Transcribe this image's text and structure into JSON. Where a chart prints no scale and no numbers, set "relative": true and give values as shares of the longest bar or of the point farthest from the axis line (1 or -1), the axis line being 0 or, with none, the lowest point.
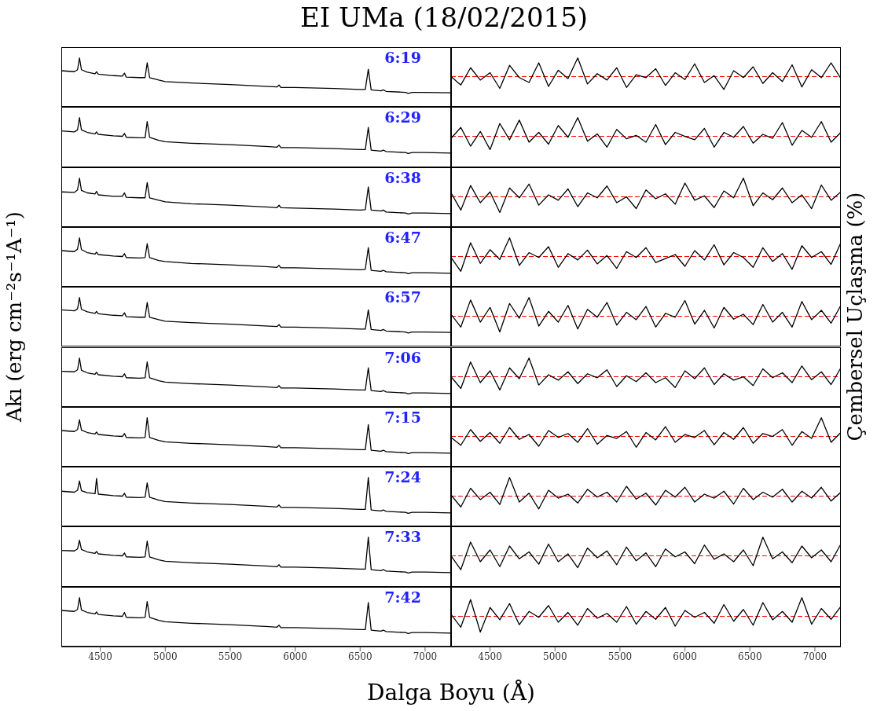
{
  "chart_data": [
    {
      "type": "line",
      "title": "EI UMa (18/02/2015)",
      "annotations": [
        "6:19"
      ],
      "relative": true,
      "color": "#000000",
      "tick_labels": false,
      "xlim": [
        4200,
        7200
      ],
      "xticks": [
        4500,
        5000,
        5500,
        6000,
        6500,
        7000
      ],
      "x": [
        4200,
        4300,
        4325,
        4340,
        4355,
        4400,
        4460,
        4471,
        4485,
        4600,
        4670,
        4686,
        4700,
        4800,
        4845,
        4861,
        4880,
        4950,
        5000,
        5200,
        5500,
        5800,
        5860,
        5876,
        5890,
        6000,
        6300,
        6500,
        6540,
        6563,
        6585,
        6660,
        6678,
        6700,
        6850,
        6870,
        6900,
        7000,
        7200
      ],
      "values": [
        0.74,
        0.72,
        0.76,
        1.0,
        0.76,
        0.71,
        0.68,
        0.72,
        0.67,
        0.64,
        0.63,
        0.69,
        0.61,
        0.6,
        0.6,
        0.9,
        0.6,
        0.55,
        0.52,
        0.49,
        0.46,
        0.42,
        0.41,
        0.45,
        0.4,
        0.4,
        0.38,
        0.36,
        0.36,
        0.77,
        0.35,
        0.33,
        0.35,
        0.32,
        0.3,
        0.28,
        0.3,
        0.3,
        0.29
      ]
    },
    {
      "type": "line",
      "relative": true,
      "color": "#000000",
      "tick_labels": false,
      "xlim": [
        4200,
        7200
      ],
      "xticks": [
        4500,
        5000,
        5500,
        6000,
        6500,
        7000
      ],
      "ref_lines": [
        {
          "axis": "y",
          "value": 0.62,
          "color": "#ff0000",
          "line_style": "dashed"
        }
      ],
      "x": [
        4200,
        4275,
        4350,
        4425,
        4500,
        4575,
        4650,
        4725,
        4800,
        4875,
        4950,
        5025,
        5100,
        5175,
        5250,
        5325,
        5400,
        5475,
        5550,
        5625,
        5700,
        5775,
        5850,
        5925,
        6000,
        6075,
        6150,
        6225,
        6300,
        6375,
        6450,
        6525,
        6600,
        6675,
        6750,
        6825,
        6900,
        6975,
        7050,
        7125,
        7200
      ],
      "values": [
        0.62,
        0.45,
        0.8,
        0.55,
        0.7,
        0.38,
        0.85,
        0.6,
        0.5,
        0.9,
        0.42,
        0.75,
        0.58,
        1.0,
        0.47,
        0.68,
        0.55,
        0.8,
        0.4,
        0.66,
        0.6,
        0.78,
        0.44,
        0.7,
        0.56,
        0.88,
        0.5,
        0.64,
        0.36,
        0.74,
        0.6,
        0.82,
        0.48,
        0.7,
        0.52,
        0.86,
        0.41,
        0.76,
        0.6,
        0.9,
        0.58
      ]
    },
    {
      "type": "line",
      "annotations": [
        "6:29"
      ],
      "relative": true,
      "color": "#000000",
      "tick_labels": false,
      "xlim": [
        4200,
        7200
      ],
      "xticks": [
        4500,
        5000,
        5500,
        6000,
        6500,
        7000
      ],
      "x": [
        4200,
        4300,
        4325,
        4340,
        4355,
        4400,
        4460,
        4471,
        4485,
        4600,
        4670,
        4686,
        4700,
        4800,
        4845,
        4861,
        4880,
        4950,
        5000,
        5200,
        5500,
        5800,
        5860,
        5876,
        5890,
        6000,
        6300,
        6500,
        6540,
        6563,
        6585,
        6660,
        6678,
        6700,
        6850,
        6870,
        6900,
        7000,
        7200
      ],
      "values": [
        0.73,
        0.71,
        0.75,
        1.0,
        0.75,
        0.7,
        0.67,
        0.71,
        0.66,
        0.63,
        0.62,
        0.68,
        0.6,
        0.59,
        0.59,
        0.92,
        0.6,
        0.54,
        0.51,
        0.48,
        0.45,
        0.41,
        0.4,
        0.44,
        0.39,
        0.39,
        0.37,
        0.35,
        0.35,
        0.8,
        0.34,
        0.32,
        0.34,
        0.31,
        0.29,
        0.27,
        0.29,
        0.29,
        0.28
      ]
    },
    {
      "type": "line",
      "relative": true,
      "color": "#000000",
      "tick_labels": false,
      "xlim": [
        4200,
        7200
      ],
      "xticks": [
        4500,
        5000,
        5500,
        6000,
        6500,
        7000
      ],
      "ref_lines": [
        {
          "axis": "y",
          "value": 0.62,
          "color": "#ff0000",
          "line_style": "dashed"
        }
      ],
      "x": [
        4200,
        4275,
        4350,
        4425,
        4500,
        4575,
        4650,
        4725,
        4800,
        4875,
        4950,
        5025,
        5100,
        5175,
        5250,
        5325,
        5400,
        5475,
        5550,
        5625,
        5700,
        5775,
        5850,
        5925,
        6000,
        6075,
        6150,
        6225,
        6300,
        6375,
        6450,
        6525,
        6600,
        6675,
        6750,
        6825,
        6900,
        6975,
        7050,
        7125,
        7200
      ],
      "values": [
        0.58,
        0.8,
        0.42,
        0.72,
        0.35,
        0.88,
        0.55,
        0.95,
        0.5,
        0.7,
        0.46,
        0.84,
        0.6,
        1.0,
        0.52,
        0.67,
        0.4,
        0.76,
        0.57,
        0.64,
        0.5,
        0.86,
        0.45,
        0.7,
        0.62,
        0.55,
        0.78,
        0.4,
        0.7,
        0.6,
        0.82,
        0.48,
        0.66,
        0.58,
        0.9,
        0.44,
        0.74,
        0.6,
        0.92,
        0.5,
        0.7
      ]
    },
    {
      "type": "line",
      "annotations": [
        "6:38"
      ],
      "relative": true,
      "color": "#000000",
      "tick_labels": false,
      "xlim": [
        4200,
        7200
      ],
      "xticks": [
        4500,
        5000,
        5500,
        6000,
        6500,
        7000
      ],
      "x": [
        4200,
        4300,
        4325,
        4340,
        4355,
        4400,
        4460,
        4471,
        4485,
        4600,
        4670,
        4686,
        4700,
        4800,
        4845,
        4861,
        4880,
        4950,
        5000,
        5200,
        5500,
        5800,
        5860,
        5876,
        5890,
        6000,
        6300,
        6500,
        6540,
        6563,
        6585,
        6660,
        6678,
        6700,
        6850,
        6870,
        6900,
        7000,
        7200
      ],
      "values": [
        0.72,
        0.71,
        0.76,
        1.0,
        0.75,
        0.7,
        0.68,
        0.73,
        0.66,
        0.63,
        0.63,
        0.7,
        0.61,
        0.6,
        0.6,
        0.91,
        0.6,
        0.55,
        0.52,
        0.48,
        0.45,
        0.41,
        0.4,
        0.45,
        0.4,
        0.39,
        0.37,
        0.35,
        0.36,
        0.82,
        0.35,
        0.33,
        0.35,
        0.31,
        0.29,
        0.27,
        0.29,
        0.29,
        0.28
      ]
    },
    {
      "type": "line",
      "relative": true,
      "color": "#000000",
      "tick_labels": false,
      "xlim": [
        4200,
        7200
      ],
      "xticks": [
        4500,
        5000,
        5500,
        6000,
        6500,
        7000
      ],
      "ref_lines": [
        {
          "axis": "y",
          "value": 0.62,
          "color": "#ff0000",
          "line_style": "dashed"
        }
      ],
      "x": [
        4200,
        4275,
        4350,
        4425,
        4500,
        4575,
        4650,
        4725,
        4800,
        4875,
        4950,
        5025,
        5100,
        5175,
        5250,
        5325,
        5400,
        5475,
        5550,
        5625,
        5700,
        5775,
        5850,
        5925,
        6000,
        6075,
        6150,
        6225,
        6300,
        6375,
        6450,
        6525,
        6600,
        6675,
        6750,
        6825,
        6900,
        6975,
        7050,
        7125,
        7200
      ],
      "values": [
        0.7,
        0.35,
        0.85,
        0.5,
        0.72,
        0.3,
        0.8,
        0.6,
        0.88,
        0.45,
        0.66,
        0.55,
        0.78,
        0.42,
        0.7,
        0.6,
        0.84,
        0.5,
        0.62,
        0.38,
        0.76,
        0.58,
        0.68,
        0.47,
        0.9,
        0.55,
        0.64,
        0.4,
        0.74,
        0.6,
        1.0,
        0.44,
        0.7,
        0.56,
        0.8,
        0.5,
        0.66,
        0.38,
        0.86,
        0.55,
        0.72
      ]
    },
    {
      "type": "line",
      "annotations": [
        "6:47"
      ],
      "relative": true,
      "color": "#000000",
      "tick_labels": false,
      "xlim": [
        4200,
        7200
      ],
      "xticks": [
        4500,
        5000,
        5500,
        6000,
        6500,
        7000
      ],
      "x": [
        4200,
        4300,
        4325,
        4340,
        4355,
        4400,
        4460,
        4471,
        4485,
        4600,
        4670,
        4686,
        4700,
        4800,
        4845,
        4861,
        4880,
        4950,
        5000,
        5200,
        5500,
        5800,
        5860,
        5876,
        5890,
        6000,
        6300,
        6500,
        6540,
        6563,
        6585,
        6660,
        6678,
        6700,
        6850,
        6870,
        6900,
        7000,
        7200
      ],
      "values": [
        0.74,
        0.72,
        0.77,
        1.0,
        0.76,
        0.7,
        0.67,
        0.71,
        0.66,
        0.63,
        0.62,
        0.68,
        0.6,
        0.59,
        0.6,
        0.88,
        0.6,
        0.54,
        0.52,
        0.48,
        0.45,
        0.41,
        0.4,
        0.44,
        0.39,
        0.39,
        0.37,
        0.35,
        0.36,
        0.8,
        0.34,
        0.32,
        0.34,
        0.31,
        0.29,
        0.27,
        0.29,
        0.29,
        0.28
      ]
    },
    {
      "type": "line",
      "relative": true,
      "color": "#000000",
      "tick_labels": false,
      "xlim": [
        4200,
        7200
      ],
      "xticks": [
        4500,
        5000,
        5500,
        6000,
        6500,
        7000
      ],
      "ref_lines": [
        {
          "axis": "y",
          "value": 0.62,
          "color": "#ff0000",
          "line_style": "dashed"
        }
      ],
      "x": [
        4200,
        4275,
        4350,
        4425,
        4500,
        4575,
        4650,
        4725,
        4800,
        4875,
        4950,
        5025,
        5100,
        5175,
        5250,
        5325,
        5400,
        5475,
        5550,
        5625,
        5700,
        5775,
        5850,
        5925,
        6000,
        6075,
        6150,
        6225,
        6300,
        6375,
        6450,
        6525,
        6600,
        6675,
        6750,
        6825,
        6900,
        6975,
        7050,
        7125,
        7200
      ],
      "values": [
        0.6,
        0.32,
        0.9,
        0.48,
        0.76,
        0.56,
        1.0,
        0.44,
        0.7,
        0.6,
        0.82,
        0.4,
        0.68,
        0.55,
        0.75,
        0.47,
        0.64,
        0.38,
        0.72,
        0.6,
        0.8,
        0.5,
        0.58,
        0.66,
        0.42,
        0.74,
        0.55,
        0.86,
        0.45,
        0.7,
        0.6,
        0.4,
        0.8,
        0.52,
        0.68,
        0.36,
        0.84,
        0.6,
        0.72,
        0.46,
        0.9
      ]
    },
    {
      "type": "line",
      "ylabel": "Akı (erg cm⁻²s⁻¹A⁻¹)",
      "annotations": [
        "6:57"
      ],
      "relative": true,
      "color": "#000000",
      "tick_labels": false,
      "xlim": [
        4200,
        7200
      ],
      "xticks": [
        4500,
        5000,
        5500,
        6000,
        6500,
        7000
      ],
      "x": [
        4200,
        4300,
        4325,
        4340,
        4355,
        4400,
        4460,
        4471,
        4485,
        4600,
        4670,
        4686,
        4700,
        4800,
        4845,
        4861,
        4880,
        4950,
        5000,
        5200,
        5500,
        5800,
        5860,
        5876,
        5890,
        6000,
        6300,
        6500,
        6540,
        6563,
        6585,
        6660,
        6678,
        6700,
        6850,
        6870,
        6900,
        7000,
        7200
      ],
      "values": [
        0.75,
        0.73,
        0.77,
        1.0,
        0.76,
        0.71,
        0.68,
        0.72,
        0.67,
        0.64,
        0.63,
        0.69,
        0.61,
        0.6,
        0.6,
        0.9,
        0.6,
        0.55,
        0.52,
        0.49,
        0.46,
        0.42,
        0.41,
        0.45,
        0.4,
        0.4,
        0.38,
        0.36,
        0.36,
        0.75,
        0.35,
        0.33,
        0.35,
        0.32,
        0.3,
        0.28,
        0.3,
        0.3,
        0.29
      ]
    },
    {
      "type": "line",
      "relative": true,
      "color": "#000000",
      "tick_labels": false,
      "xlim": [
        4200,
        7200
      ],
      "xticks": [
        4500,
        5000,
        5500,
        6000,
        6500,
        7000
      ],
      "ref_lines": [
        {
          "axis": "y",
          "value": 0.62,
          "color": "#ff0000",
          "line_style": "dashed"
        }
      ],
      "x": [
        4200,
        4275,
        4350,
        4425,
        4500,
        4575,
        4650,
        4725,
        4800,
        4875,
        4950,
        5025,
        5100,
        5175,
        5250,
        5325,
        5400,
        5475,
        5550,
        5625,
        5700,
        5775,
        5850,
        5925,
        6000,
        6075,
        6150,
        6225,
        6300,
        6375,
        6450,
        6525,
        6600,
        6675,
        6750,
        6825,
        6900,
        6975,
        7050,
        7125,
        7200
      ],
      "values": [
        0.66,
        0.4,
        0.95,
        0.5,
        0.8,
        0.3,
        0.88,
        0.58,
        1.0,
        0.42,
        0.72,
        0.5,
        0.84,
        0.36,
        0.76,
        0.6,
        0.9,
        0.44,
        0.7,
        0.55,
        0.82,
        0.4,
        0.68,
        0.6,
        0.94,
        0.46,
        0.74,
        0.38,
        0.8,
        0.56,
        0.66,
        0.45,
        0.86,
        0.5,
        0.7,
        0.4,
        0.92,
        0.55,
        0.74,
        0.48,
        0.84
      ],
      "ylabel": "Çembersel Uçlaşma (%)"
    },
    {
      "type": "line",
      "annotations": [
        "7:06"
      ],
      "relative": true,
      "color": "#000000",
      "tick_labels": false,
      "xlim": [
        4200,
        7200
      ],
      "xticks": [
        4500,
        5000,
        5500,
        6000,
        6500,
        7000
      ],
      "x": [
        4200,
        4300,
        4325,
        4340,
        4355,
        4400,
        4460,
        4471,
        4485,
        4600,
        4670,
        4686,
        4700,
        4800,
        4845,
        4861,
        4880,
        4950,
        5000,
        5200,
        5500,
        5800,
        5860,
        5876,
        5890,
        6000,
        6300,
        6500,
        6540,
        6563,
        6585,
        6660,
        6678,
        6700,
        6850,
        6870,
        6900,
        7000,
        7200
      ],
      "values": [
        0.73,
        0.72,
        0.76,
        1.0,
        0.75,
        0.7,
        0.67,
        0.71,
        0.66,
        0.63,
        0.62,
        0.68,
        0.6,
        0.59,
        0.6,
        0.92,
        0.6,
        0.54,
        0.51,
        0.48,
        0.45,
        0.41,
        0.4,
        0.44,
        0.39,
        0.39,
        0.37,
        0.35,
        0.35,
        0.8,
        0.34,
        0.32,
        0.34,
        0.31,
        0.29,
        0.27,
        0.29,
        0.29,
        0.28
      ]
    },
    {
      "type": "line",
      "relative": true,
      "color": "#000000",
      "tick_labels": false,
      "xlim": [
        4200,
        7200
      ],
      "xticks": [
        4500,
        5000,
        5500,
        6000,
        6500,
        7000
      ],
      "ref_lines": [
        {
          "axis": "y",
          "value": 0.62,
          "color": "#ff0000",
          "line_style": "dashed"
        }
      ],
      "x": [
        4200,
        4275,
        4350,
        4425,
        4500,
        4575,
        4650,
        4725,
        4800,
        4875,
        4950,
        5025,
        5100,
        5175,
        5250,
        5325,
        5400,
        5475,
        5550,
        5625,
        5700,
        5775,
        5850,
        5925,
        6000,
        6075,
        6150,
        6225,
        6300,
        6375,
        6450,
        6525,
        6600,
        6675,
        6750,
        6825,
        6900,
        6975,
        7050,
        7125,
        7200
      ],
      "values": [
        0.62,
        0.38,
        0.92,
        0.5,
        0.74,
        0.35,
        0.8,
        0.58,
        1.0,
        0.45,
        0.66,
        0.55,
        0.72,
        0.48,
        0.68,
        0.6,
        0.76,
        0.42,
        0.64,
        0.52,
        0.7,
        0.5,
        0.6,
        0.4,
        0.74,
        0.58,
        0.8,
        0.46,
        0.68,
        0.55,
        0.62,
        0.44,
        0.78,
        0.6,
        0.7,
        0.5,
        0.84,
        0.56,
        0.72,
        0.46,
        0.8
      ]
    },
    {
      "type": "line",
      "annotations": [
        "7:15"
      ],
      "relative": true,
      "color": "#000000",
      "tick_labels": false,
      "xlim": [
        4200,
        7200
      ],
      "xticks": [
        4500,
        5000,
        5500,
        6000,
        6500,
        7000
      ],
      "x": [
        4200,
        4300,
        4325,
        4340,
        4355,
        4400,
        4460,
        4471,
        4485,
        4600,
        4670,
        4686,
        4700,
        4800,
        4845,
        4861,
        4880,
        4950,
        5000,
        5200,
        5500,
        5800,
        5860,
        5876,
        5890,
        6000,
        6300,
        6500,
        6540,
        6563,
        6585,
        6660,
        6678,
        6700,
        6850,
        6870,
        6900,
        7000,
        7200
      ],
      "values": [
        0.74,
        0.72,
        0.76,
        0.96,
        0.75,
        0.7,
        0.67,
        0.71,
        0.66,
        0.63,
        0.62,
        0.68,
        0.6,
        0.59,
        0.6,
        1.0,
        0.6,
        0.54,
        0.51,
        0.48,
        0.45,
        0.41,
        0.4,
        0.44,
        0.39,
        0.39,
        0.37,
        0.35,
        0.35,
        0.86,
        0.34,
        0.32,
        0.34,
        0.31,
        0.29,
        0.27,
        0.29,
        0.29,
        0.28
      ]
    },
    {
      "type": "line",
      "relative": true,
      "color": "#000000",
      "tick_labels": false,
      "xlim": [
        4200,
        7200
      ],
      "xticks": [
        4500,
        5000,
        5500,
        6000,
        6500,
        7000
      ],
      "ref_lines": [
        {
          "axis": "y",
          "value": 0.62,
          "color": "#ff0000",
          "line_style": "dashed"
        }
      ],
      "x": [
        4200,
        4275,
        4350,
        4425,
        4500,
        4575,
        4650,
        4725,
        4800,
        4875,
        4950,
        5025,
        5100,
        5175,
        5250,
        5325,
        5400,
        5475,
        5550,
        5625,
        5700,
        5775,
        5850,
        5925,
        6000,
        6075,
        6150,
        6225,
        6300,
        6375,
        6450,
        6525,
        6600,
        6675,
        6750,
        6825,
        6900,
        6975,
        7050,
        7125,
        7200
      ],
      "values": [
        0.6,
        0.44,
        0.76,
        0.52,
        0.7,
        0.48,
        0.8,
        0.56,
        0.66,
        0.42,
        0.74,
        0.6,
        0.68,
        0.5,
        0.78,
        0.46,
        0.64,
        0.58,
        0.72,
        0.4,
        0.7,
        0.55,
        0.82,
        0.5,
        0.66,
        0.6,
        0.74,
        0.45,
        0.7,
        0.56,
        0.8,
        0.48,
        0.68,
        0.62,
        0.76,
        0.44,
        0.72,
        0.58,
        1.0,
        0.5,
        0.7
      ]
    },
    {
      "type": "line",
      "annotations": [
        "7:24"
      ],
      "relative": true,
      "color": "#000000",
      "tick_labels": false,
      "xlim": [
        4200,
        7200
      ],
      "xticks": [
        4500,
        5000,
        5500,
        6000,
        6500,
        7000
      ],
      "x": [
        4200,
        4300,
        4325,
        4340,
        4355,
        4400,
        4460,
        4471,
        4485,
        4600,
        4670,
        4686,
        4700,
        4800,
        4845,
        4861,
        4880,
        4950,
        5000,
        5200,
        5500,
        5800,
        5860,
        5876,
        5890,
        6000,
        6300,
        6500,
        6540,
        6563,
        6585,
        6660,
        6678,
        6700,
        6850,
        6870,
        6900,
        7000,
        7200
      ],
      "values": [
        0.72,
        0.7,
        0.74,
        0.93,
        0.73,
        0.69,
        0.67,
        0.98,
        0.66,
        0.63,
        0.62,
        0.68,
        0.6,
        0.59,
        0.6,
        0.89,
        0.6,
        0.54,
        0.51,
        0.48,
        0.45,
        0.41,
        0.4,
        0.44,
        0.39,
        0.39,
        0.37,
        0.35,
        0.35,
        1.0,
        0.34,
        0.32,
        0.34,
        0.31,
        0.29,
        0.27,
        0.29,
        0.29,
        0.28
      ]
    },
    {
      "type": "line",
      "relative": true,
      "color": "#000000",
      "tick_labels": false,
      "xlim": [
        4200,
        7200
      ],
      "xticks": [
        4500,
        5000,
        5500,
        6000,
        6500,
        7000
      ],
      "ref_lines": [
        {
          "axis": "y",
          "value": 0.62,
          "color": "#ff0000",
          "line_style": "dashed"
        }
      ],
      "x": [
        4200,
        4275,
        4350,
        4425,
        4500,
        4575,
        4650,
        4725,
        4800,
        4875,
        4950,
        5025,
        5100,
        5175,
        5250,
        5325,
        5400,
        5475,
        5550,
        5625,
        5700,
        5775,
        5850,
        5925,
        6000,
        6075,
        6150,
        6225,
        6300,
        6375,
        6450,
        6525,
        6600,
        6675,
        6750,
        6825,
        6900,
        6975,
        7050,
        7125,
        7200
      ],
      "values": [
        0.64,
        0.4,
        0.78,
        0.55,
        0.7,
        0.45,
        1.0,
        0.5,
        0.68,
        0.36,
        0.74,
        0.58,
        0.66,
        0.48,
        0.76,
        0.6,
        0.7,
        0.5,
        0.82,
        0.56,
        0.68,
        0.44,
        0.74,
        0.6,
        0.8,
        0.5,
        0.66,
        0.58,
        0.72,
        0.46,
        0.78,
        0.55,
        0.7,
        0.6,
        0.76,
        0.5,
        0.72,
        0.58,
        0.8,
        0.52,
        0.7
      ]
    },
    {
      "type": "line",
      "annotations": [
        "7:33"
      ],
      "relative": true,
      "color": "#000000",
      "tick_labels": false,
      "xlim": [
        4200,
        7200
      ],
      "xticks": [
        4500,
        5000,
        5500,
        6000,
        6500,
        7000
      ],
      "x": [
        4200,
        4300,
        4325,
        4340,
        4355,
        4400,
        4460,
        4471,
        4485,
        4600,
        4670,
        4686,
        4700,
        4800,
        4845,
        4861,
        4880,
        4950,
        5000,
        5200,
        5500,
        5800,
        5860,
        5876,
        5890,
        6000,
        6300,
        6500,
        6540,
        6563,
        6585,
        6660,
        6678,
        6700,
        6850,
        6870,
        6900,
        7000,
        7200
      ],
      "values": [
        0.73,
        0.72,
        0.76,
        0.94,
        0.75,
        0.7,
        0.67,
        0.71,
        0.66,
        0.63,
        0.62,
        0.68,
        0.6,
        0.59,
        0.6,
        0.92,
        0.6,
        0.54,
        0.51,
        0.48,
        0.45,
        0.41,
        0.4,
        0.44,
        0.39,
        0.39,
        0.37,
        0.35,
        0.35,
        1.0,
        0.34,
        0.32,
        0.34,
        0.31,
        0.29,
        0.27,
        0.29,
        0.29,
        0.28
      ]
    },
    {
      "type": "line",
      "relative": true,
      "color": "#000000",
      "tick_labels": false,
      "xlim": [
        4200,
        7200
      ],
      "xticks": [
        4500,
        5000,
        5500,
        6000,
        6500,
        7000
      ],
      "ref_lines": [
        {
          "axis": "y",
          "value": 0.62,
          "color": "#ff0000",
          "line_style": "dashed"
        }
      ],
      "x": [
        4200,
        4275,
        4350,
        4425,
        4500,
        4575,
        4650,
        4725,
        4800,
        4875,
        4950,
        5025,
        5100,
        5175,
        5250,
        5325,
        5400,
        5475,
        5550,
        5625,
        5700,
        5775,
        5850,
        5925,
        6000,
        6075,
        6150,
        6225,
        6300,
        6375,
        6450,
        6525,
        6600,
        6675,
        6750,
        6825,
        6900,
        6975,
        7050,
        7125,
        7200
      ],
      "values": [
        0.62,
        0.34,
        0.9,
        0.5,
        0.74,
        0.4,
        0.82,
        0.56,
        0.7,
        0.45,
        0.86,
        0.5,
        0.66,
        0.38,
        0.78,
        0.58,
        0.72,
        0.44,
        0.8,
        0.52,
        0.68,
        0.4,
        0.76,
        0.6,
        0.7,
        0.46,
        0.84,
        0.55,
        0.66,
        0.5,
        0.74,
        0.42,
        1.0,
        0.56,
        0.7,
        0.48,
        0.82,
        0.58,
        0.74,
        0.5,
        0.86
      ]
    },
    {
      "type": "line",
      "xlabel": "Dalga Boyu (Å)",
      "annotations": [
        "7:42"
      ],
      "relative": true,
      "color": "#000000",
      "tick_labels": "x",
      "xlim": [
        4200,
        7200
      ],
      "xticks": [
        4500,
        5000,
        5500,
        6000,
        6500,
        7000
      ],
      "x": [
        4200,
        4300,
        4325,
        4340,
        4355,
        4400,
        4460,
        4471,
        4485,
        4600,
        4670,
        4686,
        4700,
        4800,
        4845,
        4861,
        4880,
        4950,
        5000,
        5200,
        5500,
        5800,
        5860,
        5876,
        5890,
        6000,
        6300,
        6500,
        6540,
        6563,
        6585,
        6660,
        6678,
        6700,
        6850,
        6870,
        6900,
        7000,
        7200
      ],
      "values": [
        0.74,
        0.72,
        0.76,
        1.0,
        0.75,
        0.7,
        0.67,
        0.71,
        0.66,
        0.63,
        0.62,
        0.7,
        0.6,
        0.59,
        0.6,
        0.92,
        0.6,
        0.54,
        0.51,
        0.48,
        0.45,
        0.41,
        0.4,
        0.44,
        0.39,
        0.39,
        0.37,
        0.35,
        0.35,
        0.9,
        0.34,
        0.32,
        0.34,
        0.31,
        0.29,
        0.27,
        0.29,
        0.29,
        0.28
      ]
    },
    {
      "type": "line",
      "relative": true,
      "color": "#000000",
      "tick_labels": "x",
      "xlim": [
        4200,
        7200
      ],
      "xticks": [
        4500,
        5000,
        5500,
        6000,
        6500,
        7000
      ],
      "ref_lines": [
        {
          "axis": "y",
          "value": 0.62,
          "color": "#ff0000",
          "line_style": "dashed"
        }
      ],
      "x": [
        4200,
        4275,
        4350,
        4425,
        4500,
        4575,
        4650,
        4725,
        4800,
        4875,
        4950,
        5025,
        5100,
        5175,
        5250,
        5325,
        5400,
        5475,
        5550,
        5625,
        5700,
        5775,
        5850,
        5925,
        6000,
        6075,
        6150,
        6225,
        6300,
        6375,
        6450,
        6525,
        6600,
        6675,
        6750,
        6825,
        6900,
        6975,
        7050,
        7125,
        7200
      ],
      "values": [
        0.66,
        0.4,
        0.96,
        0.3,
        0.8,
        0.55,
        0.88,
        0.45,
        0.72,
        0.6,
        0.84,
        0.5,
        0.7,
        0.44,
        0.78,
        0.58,
        0.68,
        0.5,
        0.82,
        0.46,
        0.72,
        0.56,
        0.8,
        0.42,
        0.74,
        0.6,
        0.7,
        0.48,
        0.86,
        0.52,
        0.76,
        0.44,
        0.9,
        0.55,
        0.72,
        0.5,
        1.0,
        0.46,
        0.78,
        0.56,
        0.82
      ]
    }
  ]
}
